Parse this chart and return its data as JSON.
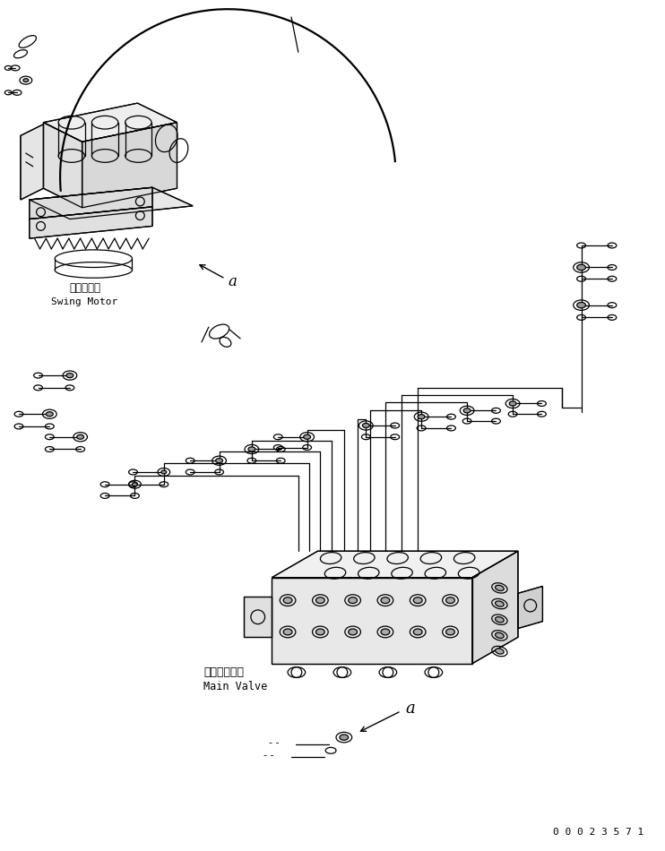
{
  "bg_color": "#ffffff",
  "lc": "#000000",
  "lw": 0.9,
  "swing_motor_jp": "旋回モータ",
  "swing_motor_en": "Swing Motor",
  "main_valve_jp": "メインバルブ",
  "main_valve_en": "Main Valve",
  "label_a": "a",
  "part_number": "0 0 0 2 3 5 7 1",
  "fig_w": 7.42,
  "fig_h": 9.5,
  "dpi": 100
}
